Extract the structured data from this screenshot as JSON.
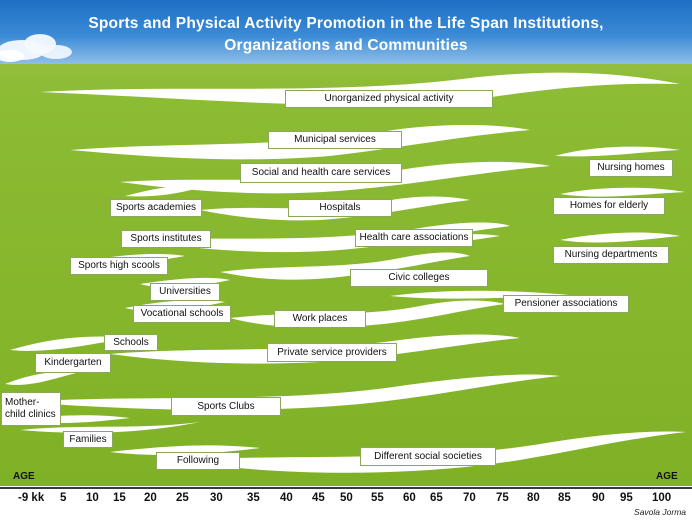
{
  "title": {
    "line1": "Sports and Physical Activity Promotion in the Life Span Institutions,",
    "line2": "Organizations  and Communities"
  },
  "labels": {
    "unorganized": "Unorganized physical activity",
    "municipal": "Municipal services",
    "social_health": "Social and health care services",
    "nursing_homes": "Nursing homes",
    "sports_academies": "Sports academies",
    "hospitals": "Hospitals",
    "homes_elderly": "Homes for elderly",
    "sports_institutes": "Sports  institutes",
    "health_assoc": "Health care associations",
    "nursing_depts": "Nursing departments",
    "sports_high": "Sports  high scools",
    "civic_colleges": "Civic colleges",
    "universities": "Universities",
    "pensioner": "Pensioner associations",
    "vocational": "Vocational schools",
    "work_places": "Work places",
    "schools": "Schools",
    "private": "Private service providers",
    "kindergarten": "Kindergarten",
    "mother_child": "Mother-child clinics",
    "sports_clubs": "Sports Clubs",
    "families": "Families",
    "following": "Following",
    "social_societies": "Different social societies"
  },
  "axis": {
    "age_left": "AGE",
    "age_right": "AGE",
    "ticks": [
      "-9 kk",
      "5",
      "10",
      "15",
      "20",
      "25",
      "30",
      "35",
      "40",
      "45",
      "50",
      "55",
      "60",
      "65",
      "70",
      "75",
      "80",
      "85",
      "90",
      "95",
      "100"
    ]
  },
  "author": "Savola  Jorma"
}
